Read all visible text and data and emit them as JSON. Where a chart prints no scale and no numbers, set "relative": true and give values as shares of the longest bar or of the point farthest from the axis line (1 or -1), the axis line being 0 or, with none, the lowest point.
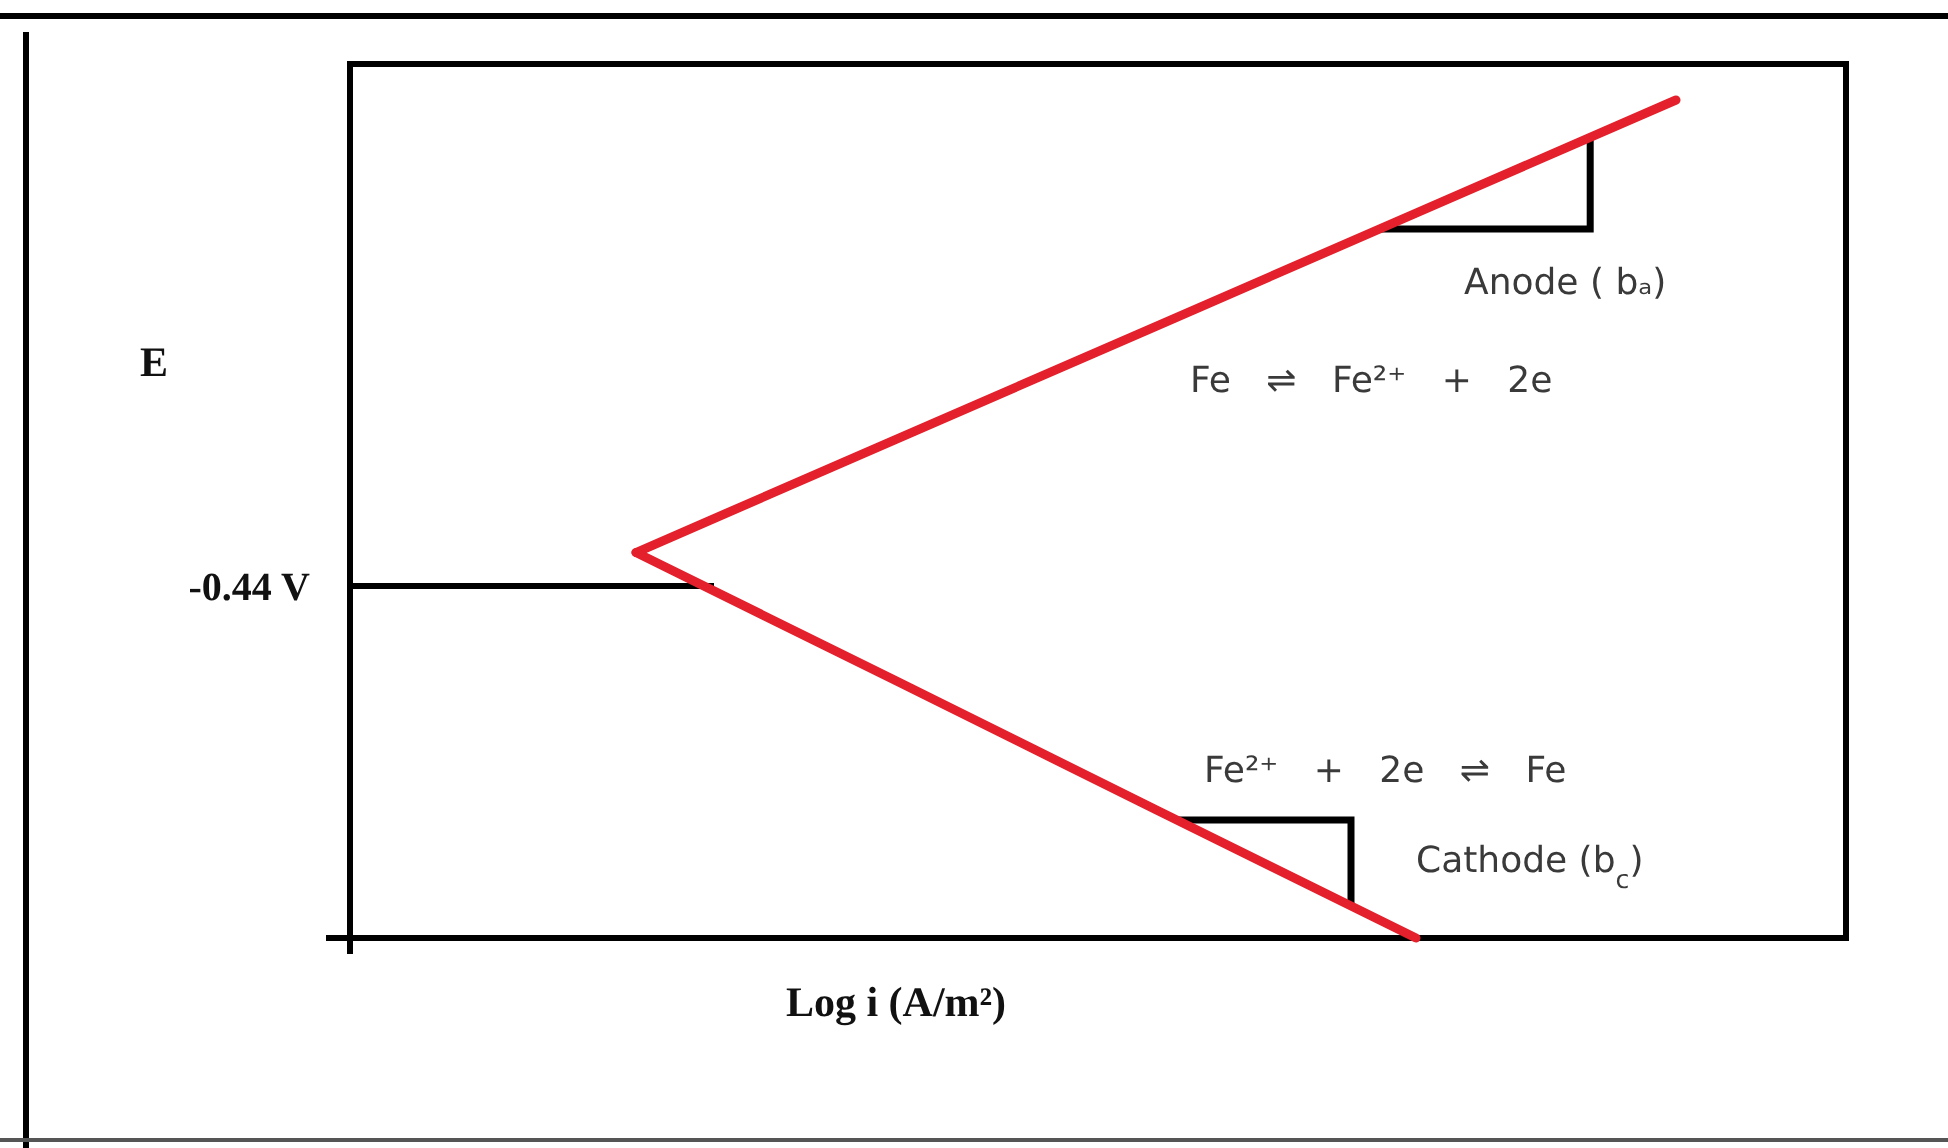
{
  "chart_data": {
    "type": "line",
    "xlabel": "Log i (A/m²)",
    "ylabel": "E",
    "relative": true,
    "categories": [
      null,
      null,
      null,
      null,
      null
    ],
    "series": [
      {
        "color": "#e3202b",
        "values": [
          0.46,
          0.595,
          0.73,
          0.865,
          1.0
        ]
      },
      {
        "color": "#e3202b",
        "values": [
          0.46,
          0.307,
          0.153,
          0,
          null
        ]
      }
    ],
    "ref_lines": [
      {
        "axis": "y",
        "value": 0.42,
        "label": "-0.44 V",
        "color": "#000000"
      }
    ],
    "annotations": [
      "Anode ( bₐ)",
      "Fe ⇌ Fe²⁺ + 2e",
      "Fe²⁺ + 2e ⇌ Fe",
      "Cathode (b$_{c}$)"
    ]
  }
}
